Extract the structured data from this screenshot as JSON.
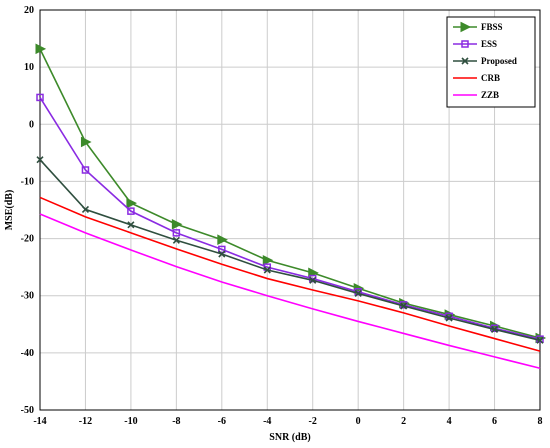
{
  "chart_data": {
    "type": "line",
    "title": "",
    "xlabel": "SNR (dB)",
    "ylabel": "MSE(dB)",
    "xlim": [
      -14,
      8
    ],
    "ylim": [
      -50,
      20
    ],
    "xticks": [
      -14,
      -12,
      -10,
      -8,
      -6,
      -4,
      -2,
      0,
      2,
      4,
      6,
      8
    ],
    "yticks": [
      20,
      10,
      0,
      -10,
      -20,
      -30,
      -40,
      -50
    ],
    "x": [
      -14,
      -12,
      -10,
      -8,
      -6,
      -4,
      -2,
      0,
      2,
      4,
      6,
      8
    ],
    "grid": true,
    "legend_position": "top-right",
    "series": [
      {
        "name": "FBSS",
        "color": "#3d8a2a",
        "marker": "triangle-right",
        "values": [
          13.2,
          -3.1,
          -13.8,
          -17.5,
          -20.2,
          -23.8,
          -26.0,
          -28.7,
          -31.3,
          -33.3,
          -35.3,
          -37.4
        ]
      },
      {
        "name": "ESS",
        "color": "#8a2be2",
        "marker": "square",
        "values": [
          4.7,
          -8.0,
          -15.2,
          -19.0,
          -21.9,
          -25.0,
          -27.0,
          -29.3,
          -31.6,
          -33.6,
          -35.7,
          -37.6
        ]
      },
      {
        "name": "Proposed",
        "color": "#2f4f3f",
        "marker": "x",
        "values": [
          -6.2,
          -14.9,
          -17.6,
          -20.3,
          -22.7,
          -25.5,
          -27.3,
          -29.6,
          -31.8,
          -33.9,
          -35.9,
          -37.8
        ]
      },
      {
        "name": "CRB",
        "color": "#ff0000",
        "marker": "none",
        "values": [
          -12.8,
          -16.2,
          -19.0,
          -21.8,
          -24.5,
          -27.0,
          -29.0,
          -30.9,
          -33.0,
          -35.3,
          -37.5,
          -39.7
        ]
      },
      {
        "name": "ZZB",
        "color": "#ff00ff",
        "marker": "none",
        "values": [
          -15.7,
          -19.0,
          -22.0,
          -24.9,
          -27.6,
          -30.0,
          -32.3,
          -34.5,
          -36.6,
          -38.7,
          -40.7,
          -42.7
        ]
      }
    ]
  }
}
